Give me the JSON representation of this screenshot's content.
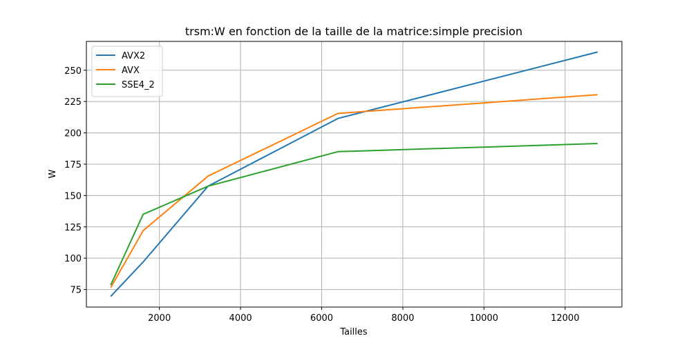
{
  "chart_data": {
    "type": "line",
    "title": "trsm:W en fonction de la taille de la matrice:simple precision",
    "xlabel": "Tailles",
    "ylabel": "W",
    "xlim": [
      200,
      13400
    ],
    "ylim": [
      61,
      273
    ],
    "xticks": [
      2000,
      4000,
      6000,
      8000,
      10000,
      12000
    ],
    "yticks": [
      75,
      100,
      125,
      150,
      175,
      200,
      225,
      250
    ],
    "grid": true,
    "legend_position": "top-left",
    "x": [
      800,
      1600,
      3200,
      6400,
      12800
    ],
    "series": [
      {
        "name": "AVX2",
        "color": "#1f77b4",
        "values": [
          69.5,
          97,
          157.5,
          211.5,
          264.5
        ]
      },
      {
        "name": "AVX",
        "color": "#ff7f0e",
        "values": [
          76.5,
          122,
          165.5,
          215.5,
          230.5
        ]
      },
      {
        "name": "SSE4_2",
        "color": "#2ca02c",
        "values": [
          78.5,
          135,
          157.5,
          185,
          191.5
        ]
      }
    ]
  }
}
